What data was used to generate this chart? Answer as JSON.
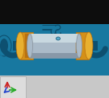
{
  "bg_dark": "#0d0d0d",
  "bg_teal": "#1878a0",
  "bg_grey": "#c8c8c8",
  "pipe_orange": "#c87828",
  "gold_dark": "#b87010",
  "gold_mid": "#d49018",
  "gold_light": "#e8b030",
  "silver_dark": "#8898a8",
  "silver_mid": "#aabac8",
  "silver_light": "#c8d8e0",
  "teal_dark": "#0d5070",
  "teal_mid": "#1878a0",
  "teal_light": "#2090b8",
  "connector_small": "#5aaccc",
  "axis_red": "#cc2222",
  "axis_green": "#22aa22",
  "axis_blue": "#2244cc",
  "fig_w": 1.35,
  "fig_h": 1.22,
  "dpi": 100
}
